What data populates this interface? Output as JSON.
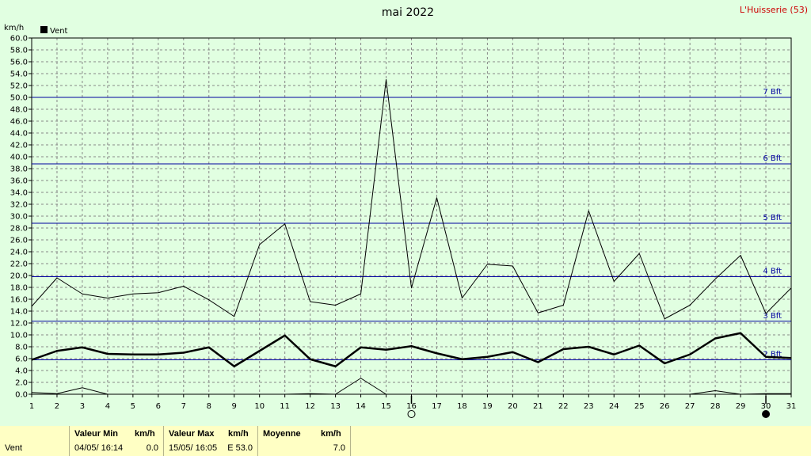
{
  "chart_data": {
    "type": "line",
    "title": "mai 2022",
    "station": "L'Huisserie (53)",
    "ylabel": "km/h",
    "legend": [
      {
        "label": "Vent",
        "color": "#000000"
      }
    ],
    "ylim": [
      0,
      60
    ],
    "ytick_step": 2,
    "x": [
      1,
      2,
      3,
      4,
      5,
      6,
      7,
      8,
      9,
      10,
      11,
      12,
      13,
      14,
      15,
      16,
      17,
      18,
      19,
      20,
      21,
      22,
      23,
      24,
      25,
      26,
      27,
      28,
      29,
      30,
      31
    ],
    "series": [
      {
        "role": "max",
        "values": [
          14.8,
          19.6,
          16.9,
          16.2,
          16.9,
          17.1,
          18.2,
          15.9,
          13.1,
          25.2,
          28.7,
          15.6,
          15.0,
          16.9,
          53.0,
          17.9,
          33.1,
          16.2,
          21.9,
          21.6,
          13.7,
          15.0,
          30.9,
          19.0,
          23.7,
          12.7,
          15.0,
          19.4,
          23.4,
          13.6,
          17.9
        ]
      },
      {
        "role": "mean",
        "values": [
          5.8,
          7.3,
          7.9,
          6.8,
          6.7,
          6.7,
          7.0,
          7.9,
          4.7,
          7.3,
          9.9,
          5.9,
          4.7,
          7.9,
          7.5,
          8.1,
          6.9,
          5.9,
          6.3,
          7.1,
          5.4,
          7.6,
          8.0,
          6.7,
          8.2,
          5.2,
          6.7,
          9.4,
          10.3,
          6.3,
          6.1
        ]
      },
      {
        "role": "min",
        "values": [
          0.3,
          0.1,
          1.1,
          0,
          0,
          0,
          0,
          0,
          0,
          0,
          0,
          0.1,
          0,
          2.7,
          0,
          0,
          0,
          0,
          0,
          0,
          0,
          0,
          0,
          0,
          0,
          0,
          0,
          0.6,
          0,
          0.1,
          0.1
        ]
      }
    ],
    "beaufort": [
      {
        "label": "2 Bft",
        "kmh": 5.8
      },
      {
        "label": "3 Bft",
        "kmh": 12.3
      },
      {
        "label": "4 Bft",
        "kmh": 19.8
      },
      {
        "label": "5 Bft",
        "kmh": 28.8
      },
      {
        "label": "6 Bft",
        "kmh": 38.8
      },
      {
        "label": "7 Bft",
        "kmh": 50.0
      }
    ],
    "moon_phases": [
      {
        "day": 16,
        "phase": "full"
      },
      {
        "day": 30,
        "phase": "new"
      }
    ],
    "colors": {
      "background": "#e1ffe1",
      "grid": "#888888",
      "beaufort": "#0000a0",
      "station": "#cc0000"
    }
  },
  "stats": {
    "row_label": "Vent",
    "min_header": "Valeur Min",
    "min_unit": "km/h",
    "min_date": "04/05/  16:14",
    "min_value": "0.0",
    "max_header": "Valeur Max",
    "max_unit": "km/h",
    "max_date": "15/05/  16:05",
    "max_value": "E  53.0",
    "avg_header": "Moyenne",
    "avg_unit": "km/h",
    "avg_value": "7.0"
  }
}
